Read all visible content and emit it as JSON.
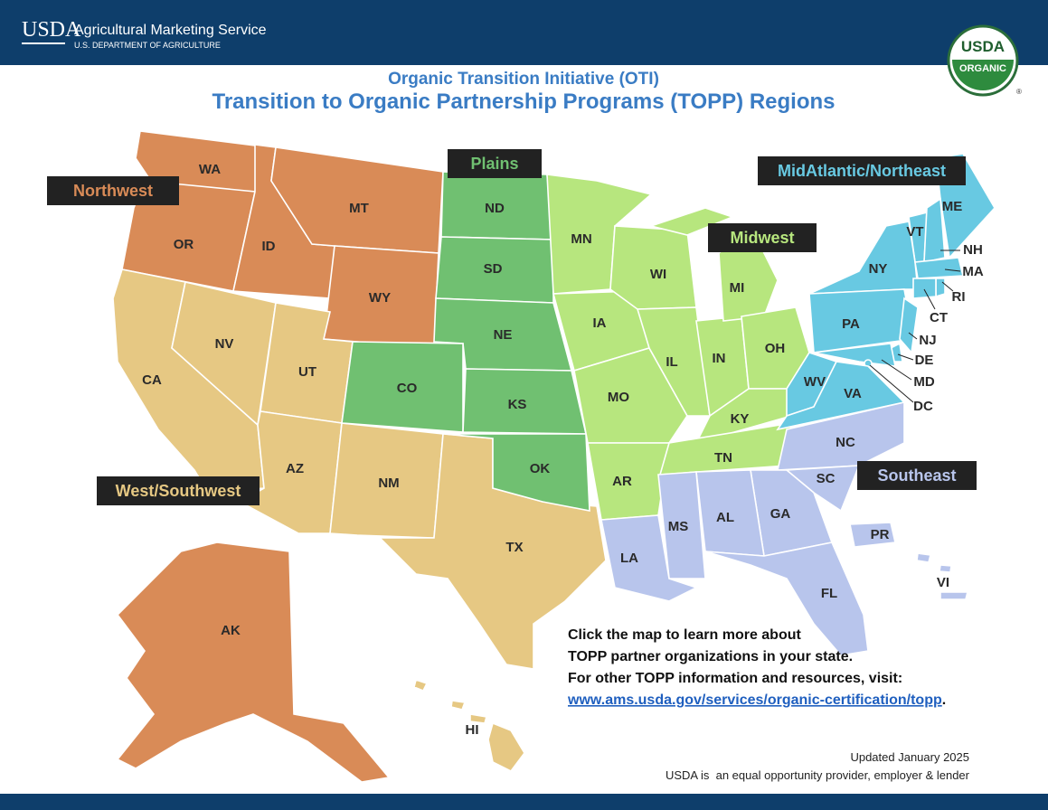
{
  "header": {
    "logo": "USDA",
    "agency": "Agricultural Marketing Service",
    "department": "U.S. DEPARTMENT OF AGRICULTURE",
    "seal_top": "USDA",
    "seal_bottom": "ORGANIC",
    "seal_mark": "®"
  },
  "title": {
    "subtitle": "Organic Transition Initiative (OTI)",
    "main": "Transition to Organic Partnership Programs (TOPP) Regions"
  },
  "regions": [
    {
      "name": "Northwest",
      "color": "#d98b57",
      "states": [
        "WA",
        "OR",
        "ID",
        "MT",
        "WY",
        "AK"
      ]
    },
    {
      "name": "West/Southwest",
      "color": "#e6c883",
      "states": [
        "CA",
        "NV",
        "UT",
        "AZ",
        "NM",
        "TX",
        "HI"
      ]
    },
    {
      "name": "Plains",
      "color": "#70c071",
      "states": [
        "ND",
        "SD",
        "NE",
        "CO",
        "KS",
        "OK"
      ]
    },
    {
      "name": "Midwest",
      "color": "#b7e67e",
      "states": [
        "MN",
        "IA",
        "MO",
        "AR",
        "WI",
        "IL",
        "IN",
        "MI",
        "OH",
        "KY",
        "TN"
      ]
    },
    {
      "name": "MidAtlantic/Northeast",
      "color": "#68c9e2",
      "states": [
        "ME",
        "VT",
        "NH",
        "NY",
        "MA",
        "RI",
        "CT",
        "PA",
        "NJ",
        "DE",
        "MD",
        "DC",
        "WV",
        "VA"
      ]
    },
    {
      "name": "Southeast",
      "color": "#b8c5ec",
      "states": [
        "NC",
        "SC",
        "GA",
        "AL",
        "MS",
        "LA",
        "FL",
        "PR",
        "VI"
      ]
    }
  ],
  "info": {
    "lines": [
      "Click the map to learn more about",
      "TOPP partner organizations in your state.",
      "For other TOPP information and resources, visit:"
    ],
    "link": "www.ams.usda.gov/services/organic-certification/topp",
    "link_end": "."
  },
  "footer": {
    "updated": "Updated January 2025",
    "notice": "USDA is  an equal opportunity provider, employer & lender"
  }
}
